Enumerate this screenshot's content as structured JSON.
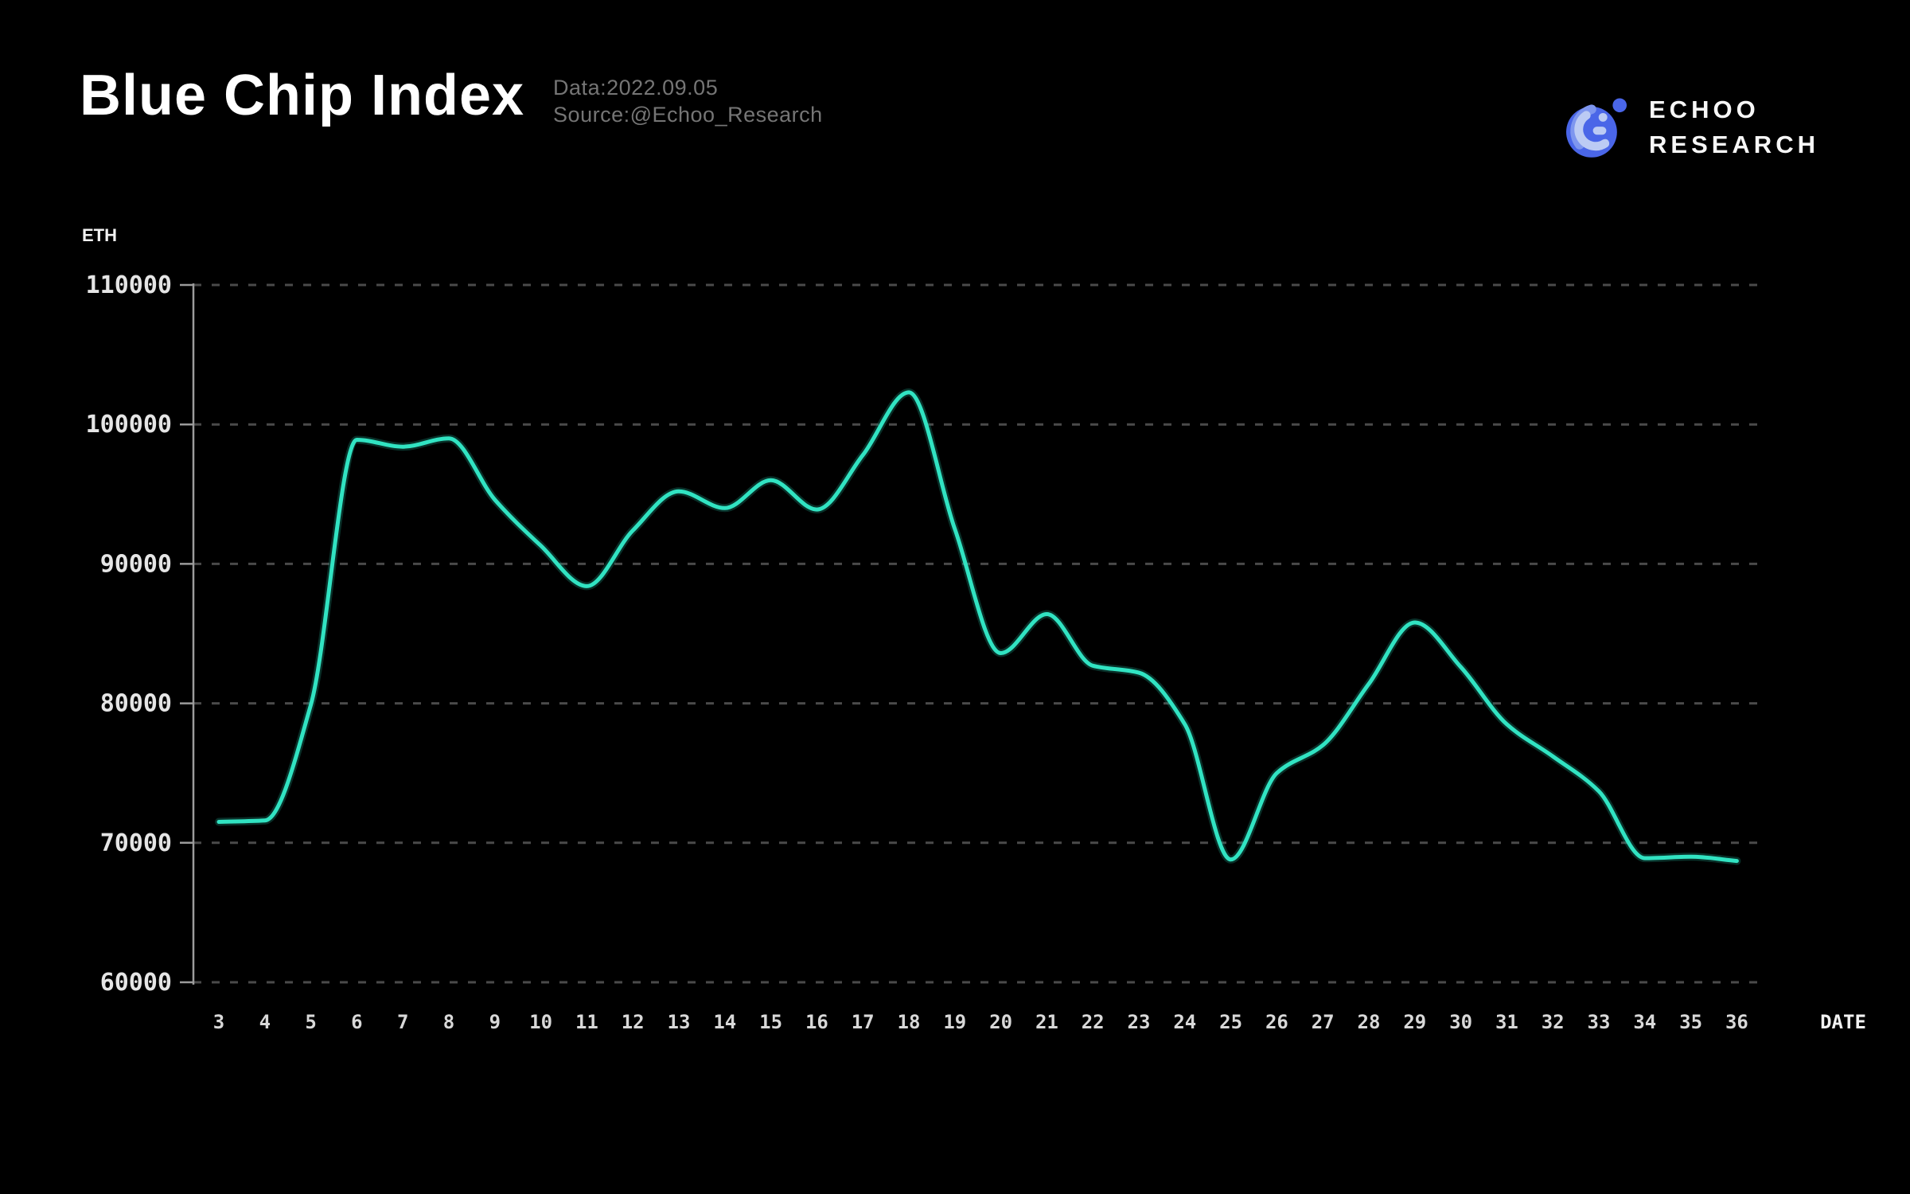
{
  "header": {
    "title": "Blue Chip Index",
    "data_line": "Data:2022.09.05",
    "source_line": "Source:@Echoo_Research"
  },
  "logo": {
    "name_line1": "ECHOO",
    "name_line2": "RESEARCH",
    "brand_blue": "#4A66E8",
    "brand_light_blue": "#BCCBF4",
    "brand_mid_blue": "#7E96EF"
  },
  "chart_data": {
    "type": "line",
    "title": "Blue Chip Index",
    "y_unit_label": "ETH",
    "x_axis_label": "DATE",
    "x": [
      3,
      4,
      5,
      6,
      7,
      8,
      9,
      10,
      11,
      12,
      13,
      14,
      15,
      16,
      17,
      18,
      19,
      20,
      21,
      22,
      23,
      24,
      25,
      26,
      27,
      28,
      29,
      30,
      31,
      32,
      33,
      34,
      35,
      36
    ],
    "series": [
      {
        "name": "Blue Chip Index (ETH)",
        "values": [
          71500,
          71600,
          79900,
          98900,
          98400,
          99000,
          94600,
          91300,
          88400,
          92400,
          95200,
          94000,
          96000,
          93900,
          97800,
          102300,
          92500,
          83600,
          86400,
          82700,
          82200,
          78500,
          68800,
          75000,
          77000,
          81400,
          85800,
          82600,
          78500,
          76200,
          73700,
          68900,
          69000,
          68700
        ]
      }
    ],
    "ylim": [
      60000,
      110000
    ],
    "yticks": [
      110000,
      100000,
      90000,
      80000,
      70000,
      60000
    ],
    "xlim": [
      3,
      36
    ],
    "grid": "horizontal-dashed",
    "legend": "none",
    "line_color": "#31E3C2",
    "line_glow_color": "#1A8A75",
    "axis_color": "#9B9B9B",
    "grid_color": "#4A4A4A",
    "y_tick_label_color": "#E5E5E5",
    "x_tick_label_color": "#D8D8D8",
    "axis_title_color": "#F2F2F2",
    "background_color": "#000000"
  }
}
